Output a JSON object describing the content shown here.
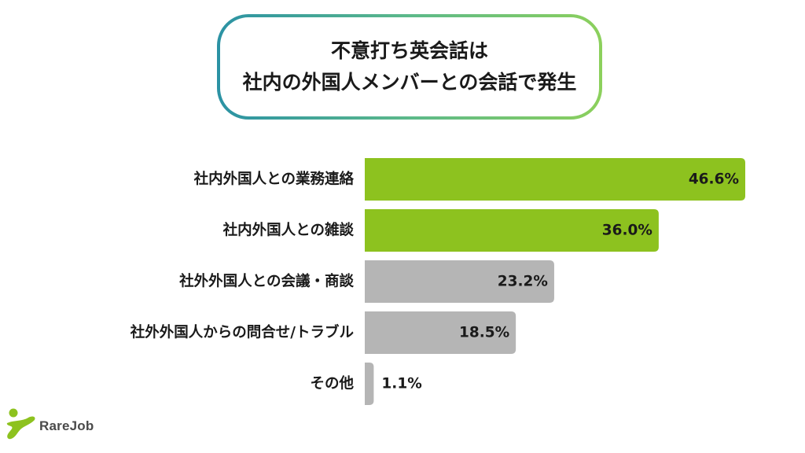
{
  "title": {
    "line1": "不意打ち英会話は",
    "line2": "社内の外国人メンバーとの会話で発生"
  },
  "chart_data": {
    "type": "bar",
    "orientation": "horizontal",
    "categories": [
      "社内外国人との業務連絡",
      "社内外国人との雑談",
      "社外外国人との会議・商談",
      "社外外国人からの問合せ/トラブル",
      "その他"
    ],
    "values": [
      46.6,
      36.0,
      23.2,
      18.5,
      1.1
    ],
    "value_labels": [
      "46.6%",
      "36.0%",
      "23.2%",
      "18.5%",
      "1.1%"
    ],
    "unit": "%",
    "xlim": [
      0,
      50
    ],
    "grid": false,
    "legend": "none",
    "colors": {
      "highlight": "#8dc21f",
      "default": "#b5b5b5"
    },
    "highlighted": [
      true,
      true,
      false,
      false,
      false
    ]
  },
  "logo": {
    "text": "RareJob",
    "colors": {
      "accent": "#8dc21f",
      "text": "#4a4a4a"
    }
  }
}
